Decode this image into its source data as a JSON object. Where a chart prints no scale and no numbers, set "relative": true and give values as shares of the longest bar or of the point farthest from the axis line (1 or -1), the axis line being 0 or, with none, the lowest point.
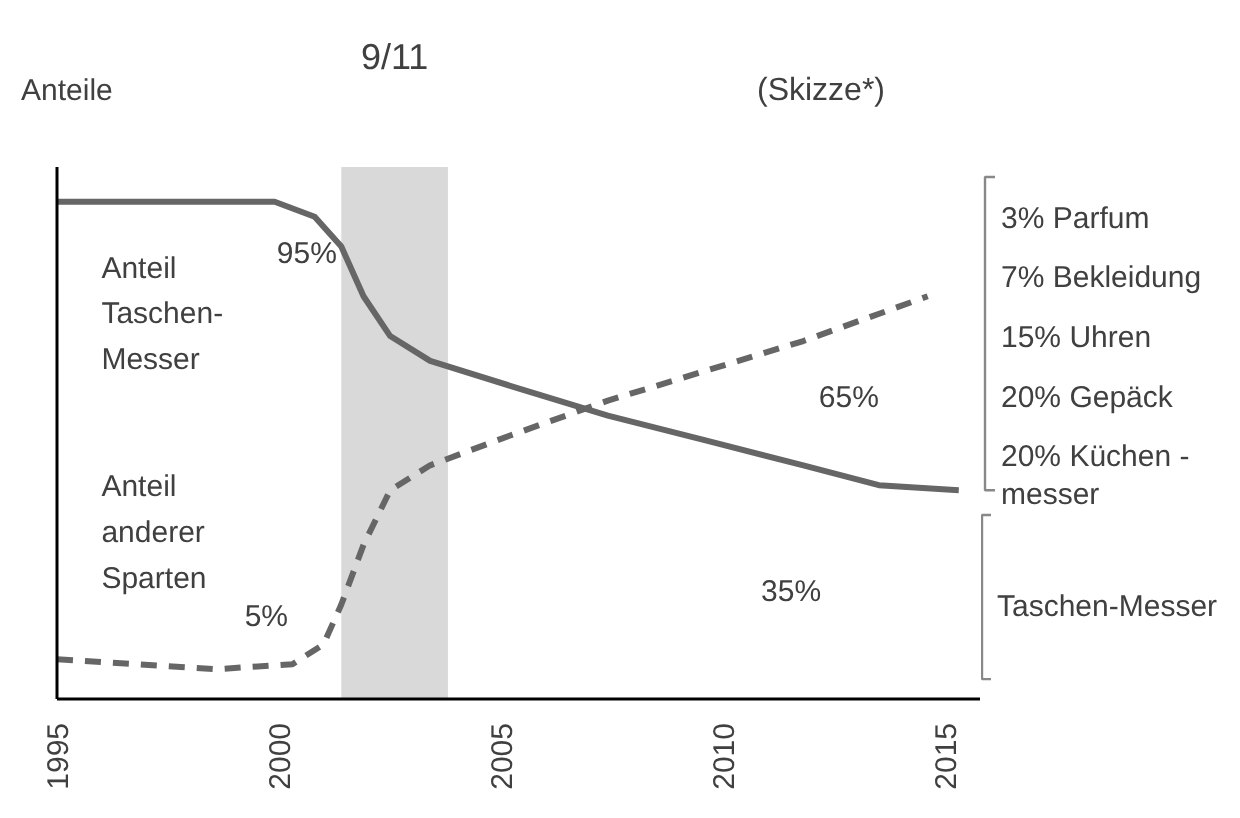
{
  "chart_data": {
    "type": "line",
    "title": "(Skizze*)",
    "ylabel": "Anteile",
    "relative": true,
    "grid": false,
    "xlim": [
      1995,
      2015.8
    ],
    "xticks": [
      1995,
      2000,
      2005,
      2010,
      2015
    ],
    "series": [
      {
        "name": "Anteil\nTaschen-\nMesser",
        "color": "#666666",
        "line_style": "solid",
        "x": [
          1995,
          1997.7,
          1999.9,
          2000.8,
          2001.4,
          2001.9,
          2002.5,
          2003.4,
          2005.2,
          2007.4,
          2009.6,
          2011.8,
          2013.5,
          2015.3
        ],
        "values": [
          1,
          1,
          1,
          0.97,
          0.91,
          0.81,
          0.73,
          0.68,
          0.63,
          0.57,
          0.52,
          0.47,
          0.43,
          0.42
        ]
      },
      {
        "name": "Anteil\nanderer\nSparten",
        "color": "#666666",
        "line_style": "dashed",
        "x": [
          1995,
          1996.8,
          1998.6,
          2000.3,
          2001.0,
          2001.4,
          2001.9,
          2002.5,
          2003.4,
          2005.2,
          2007.4,
          2009.6,
          2011.8,
          2014.6
        ],
        "values": [
          0.08,
          0.07,
          0.06,
          0.07,
          0.11,
          0.19,
          0.31,
          0.42,
          0.47,
          0.53,
          0.6,
          0.66,
          0.72,
          0.81
        ]
      }
    ],
    "bands": [
      {
        "axis": "x",
        "from": 2001.4,
        "to": 2003.8,
        "label": "9/11",
        "color": "#d9d9d9"
      }
    ],
    "annotations": [
      "95%",
      "5%",
      "65%",
      "35%",
      "3% Parfum",
      "7% Bekleidung",
      "15% Uhren",
      "20% Gepäck",
      "20% Küchen -\n      messer",
      "Taschen-Messer"
    ]
  }
}
